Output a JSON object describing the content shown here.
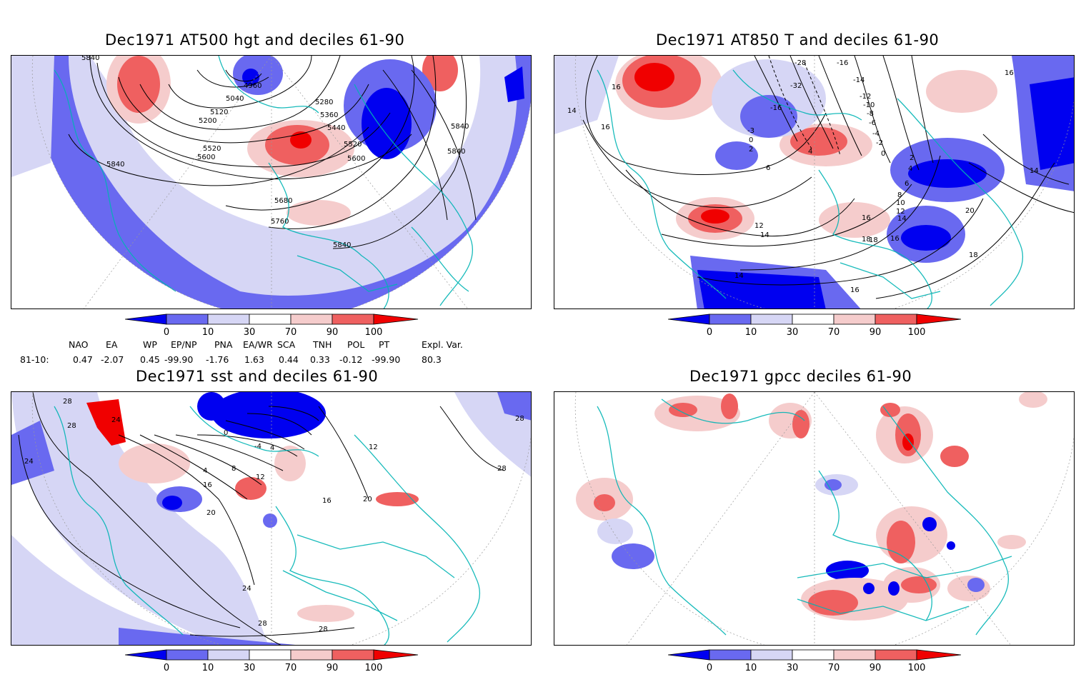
{
  "panels": [
    {
      "title": "Dec1971 AT500 hgt and deciles 61-90",
      "contour_labels": [
        "5840",
        "4960",
        "5040",
        "5120",
        "5200",
        "5280",
        "5360",
        "5440",
        "5520",
        "5600",
        "5520",
        "5600",
        "5680",
        "5760",
        "5840",
        "5840",
        "5840",
        "5840"
      ]
    },
    {
      "title": "Dec1971 AT850 T and deciles 61-90",
      "contour_labels": [
        "16",
        "16",
        "16",
        "14",
        "-16",
        "-14",
        "-12",
        "-10",
        "-8",
        "-6",
        "-4",
        "-2",
        "0",
        "2",
        "4",
        "4",
        "6",
        "6",
        "8",
        "10",
        "12",
        "14",
        "16",
        "18",
        "20",
        "12",
        "14",
        "16",
        "18",
        "14",
        "16",
        "18",
        "-28",
        "-32",
        "-16",
        "-3",
        "0",
        "2",
        "14"
      ]
    },
    {
      "title": "Dec1971 sst and deciles 61-90",
      "contour_labels": [
        "28",
        "28",
        "24",
        "24",
        "0",
        "-4",
        "4",
        "4",
        "8",
        "12",
        "16",
        "20",
        "24",
        "28",
        "28",
        "16",
        "20",
        "12",
        "28",
        "28"
      ]
    },
    {
      "title": "Dec1971 gpcc deciles 61-90",
      "contour_labels": []
    }
  ],
  "colorbar": {
    "tick_labels": [
      "0",
      "10",
      "30",
      "70",
      "90",
      "100"
    ],
    "colors": [
      "#0000f0",
      "#6969f0",
      "#d6d6f5",
      "#ffffff",
      "#f5cccc",
      "#ef6060",
      "#f00000"
    ]
  },
  "indices": {
    "headers": [
      "NAO",
      "EA",
      "WP",
      "EP/NP",
      "PNA",
      "EA/WR",
      "SCA",
      "TNH",
      "POL",
      "PT",
      "Expl. Var."
    ],
    "row_label": "81-10:",
    "values": [
      "0.47",
      "-2.07",
      "0.45",
      "-99.90",
      "-1.76",
      "1.63",
      "0.44",
      "0.33",
      "-0.12",
      "-99.90",
      "80.3"
    ]
  }
}
